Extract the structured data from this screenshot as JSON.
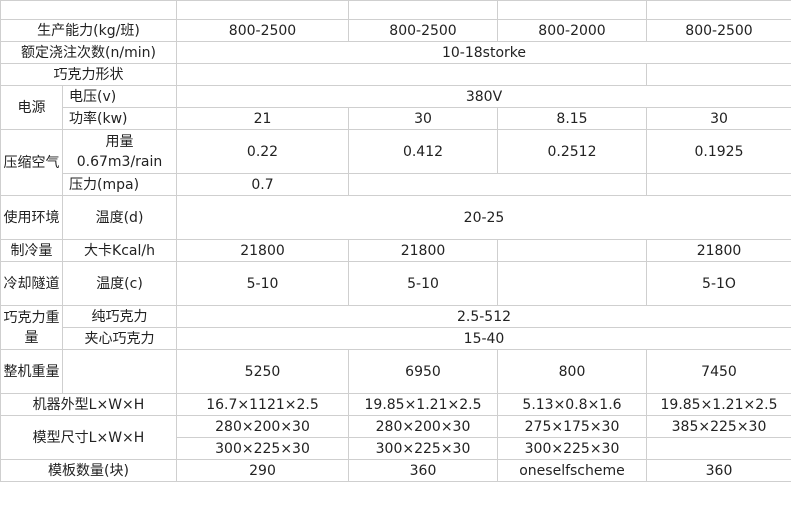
{
  "table": {
    "rows": [
      [],
      [
        "生产能力(kg/班)",
        "800-2500",
        "800-2500",
        "800-2000",
        "800-2500"
      ],
      [
        "额定浇注次数(n/min)",
        "10-18storke"
      ],
      [
        "巧克力形状"
      ],
      [
        "电源",
        "电压(v)",
        "380V"
      ],
      [
        "功率(kw)",
        "21",
        "30",
        "8.15",
        "30"
      ],
      [
        "压缩空气",
        "用量 0.67m3/rain",
        "0.22",
        "0.412",
        "0.2512",
        "0.1925"
      ],
      [
        "压力(mpa)",
        "0.7"
      ],
      [
        "使用环境",
        "温度(d)",
        "20-25"
      ],
      [
        "制冷量",
        "大卡Kcal/h",
        "21800",
        "21800",
        "21800"
      ],
      [
        "冷却隧道",
        "温度(c)",
        "5-10",
        "5-10",
        "5-1O"
      ],
      [
        "巧克力重量",
        "纯巧克力",
        "2.5-512"
      ],
      [
        "夹心巧克力",
        "15-40"
      ],
      [
        "整机重量",
        "5250",
        "6950",
        "800",
        "7450"
      ],
      [
        "机器外型L×W×H",
        "16.7×1121×2.5",
        "19.85×1.21×2.5",
        "5.13×0.8×1.6",
        "19.85×1.21×2.5"
      ],
      [
        "模型尺寸L×W×H",
        "280×200×30",
        "280×200×30",
        "275×175×30",
        "385×225×30"
      ],
      [
        "300×225×30",
        "300×225×30",
        "300×225×30"
      ],
      [
        "模板数量(块)",
        "290",
        "360",
        "oneselfscheme",
        "360"
      ]
    ]
  }
}
